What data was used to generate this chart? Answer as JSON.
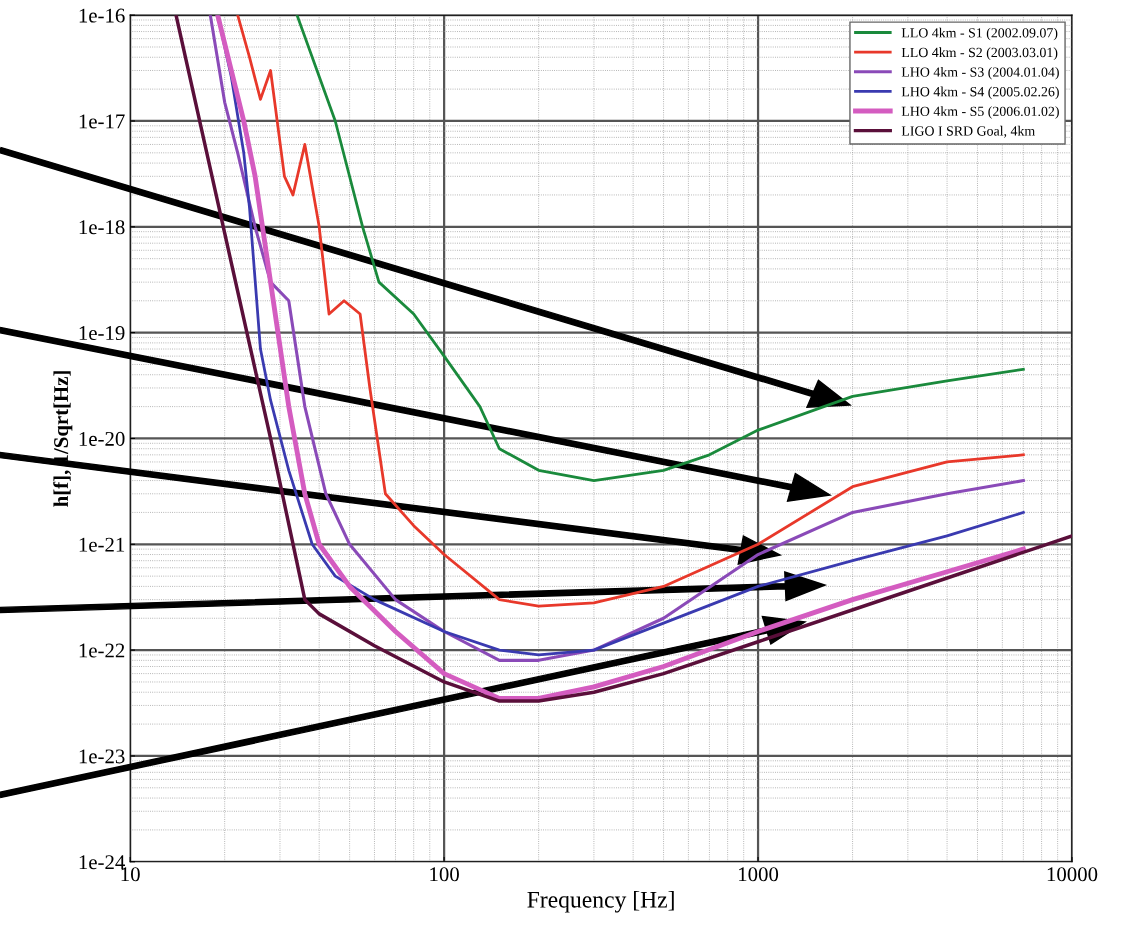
{
  "chart_data": {
    "type": "line",
    "xlabel": "Frequency [Hz]",
    "ylabel": "h[f], 1/Sqrt[Hz]",
    "log": "xy",
    "xlim": [
      10,
      10000
    ],
    "xticks": [
      10,
      100,
      1000,
      10000
    ],
    "ylim": [
      1e-24,
      1e-16
    ],
    "yticks": [
      {
        "value": 1e-24,
        "label": "1e-24"
      },
      {
        "value": 1e-23,
        "label": "1e-23"
      },
      {
        "value": 1e-22,
        "label": "1e-22"
      },
      {
        "value": 1e-21,
        "label": "1e-21"
      },
      {
        "value": 1e-20,
        "label": "1e-20"
      },
      {
        "value": 1e-19,
        "label": "1e-19"
      },
      {
        "value": 1e-18,
        "label": "1e-18"
      },
      {
        "value": 1e-17,
        "label": "1e-17"
      },
      {
        "value": 1e-16,
        "label": "1e-16"
      }
    ],
    "grid": true,
    "legend": "top right",
    "line_style": "solid",
    "marker": "none",
    "series": [
      {
        "name": "LLO 4km - S1 (2002.09.07)",
        "color": "#1a8a3c",
        "x": [
          34,
          45,
          55,
          62,
          80,
          100,
          130,
          150,
          200,
          300,
          500,
          700,
          1000,
          2000,
          4000,
          7000
        ],
        "values": [
          1e-16,
          1e-17,
          1e-18,
          3e-19,
          1.5e-19,
          6e-20,
          2e-20,
          8e-21,
          5e-21,
          4e-21,
          5e-21,
          7e-21,
          1.2e-20,
          2.5e-20,
          3.5e-20,
          4.5e-20
        ]
      },
      {
        "name": "LLO 4km - S2 (2003.03.01)",
        "color": "#e8382a",
        "x": [
          22,
          24,
          26,
          28,
          31,
          33,
          36,
          40,
          43,
          48,
          54,
          58,
          65,
          80,
          100,
          150,
          200,
          300,
          500,
          1000,
          2000,
          4000,
          7000
        ],
        "values": [
          1e-16,
          4e-17,
          1.6e-17,
          3e-17,
          3e-18,
          2e-18,
          6e-18,
          1e-18,
          1.5e-19,
          2e-19,
          1.5e-19,
          3e-20,
          3e-21,
          1.5e-21,
          8e-22,
          3e-22,
          2.6e-22,
          2.8e-22,
          4e-22,
          1e-21,
          3.5e-21,
          6e-21,
          7e-21
        ]
      },
      {
        "name": "LHO 4km - S3 (2004.01.04)",
        "color": "#8a4ab8",
        "x": [
          18,
          20,
          22,
          25,
          28,
          32,
          36,
          42,
          50,
          70,
          100,
          150,
          200,
          300,
          500,
          1000,
          2000,
          4000,
          7000
        ],
        "values": [
          1e-16,
          1.5e-17,
          5e-18,
          1e-18,
          3e-19,
          2e-19,
          2e-20,
          3e-21,
          1e-21,
          3e-22,
          1.5e-22,
          8e-23,
          8e-23,
          1e-22,
          2e-22,
          8e-22,
          2e-21,
          3e-21,
          4e-21
        ]
      },
      {
        "name": "LHO 4km - S4 (2005.02.26)",
        "color": "#3a3ab0",
        "x": [
          19,
          21,
          23,
          24,
          26,
          28,
          32,
          38,
          45,
          60,
          100,
          150,
          200,
          300,
          500,
          1000,
          2000,
          4000,
          7000
        ],
        "values": [
          1e-16,
          2.6e-17,
          5e-18,
          1.5e-18,
          7e-20,
          2.3e-20,
          5e-21,
          1e-21,
          5e-22,
          3e-22,
          1.5e-22,
          1e-22,
          9e-23,
          1e-22,
          1.8e-22,
          4e-22,
          7e-22,
          1.2e-21,
          2e-21
        ]
      },
      {
        "name": "LHO 4km - S5 (2006.01.02)",
        "color": "#d45cc0",
        "x": [
          19,
          21,
          23,
          25,
          28,
          32,
          36,
          40,
          50,
          70,
          100,
          150,
          200,
          300,
          500,
          1000,
          2000,
          4000,
          7000
        ],
        "values": [
          1e-16,
          3e-17,
          1e-17,
          3e-18,
          3e-19,
          2e-20,
          3e-21,
          1e-21,
          4e-22,
          1.5e-22,
          6e-23,
          3.5e-23,
          3.5e-23,
          4.5e-23,
          7e-23,
          1.5e-22,
          3e-22,
          5.5e-22,
          9e-22
        ]
      },
      {
        "name": "LIGO I SRD Goal, 4km",
        "color": "#5a0f3a",
        "x": [
          14,
          20,
          28,
          36,
          40,
          60,
          100,
          150,
          200,
          300,
          500,
          1000,
          3000,
          10000
        ],
        "values": [
          1e-16,
          8.7e-19,
          1e-20,
          3e-22,
          2.2e-22,
          1.1e-22,
          5e-23,
          3.3e-23,
          3.3e-23,
          4e-23,
          6e-23,
          1.2e-22,
          3.6e-22,
          1.2e-21
        ]
      }
    ]
  }
}
